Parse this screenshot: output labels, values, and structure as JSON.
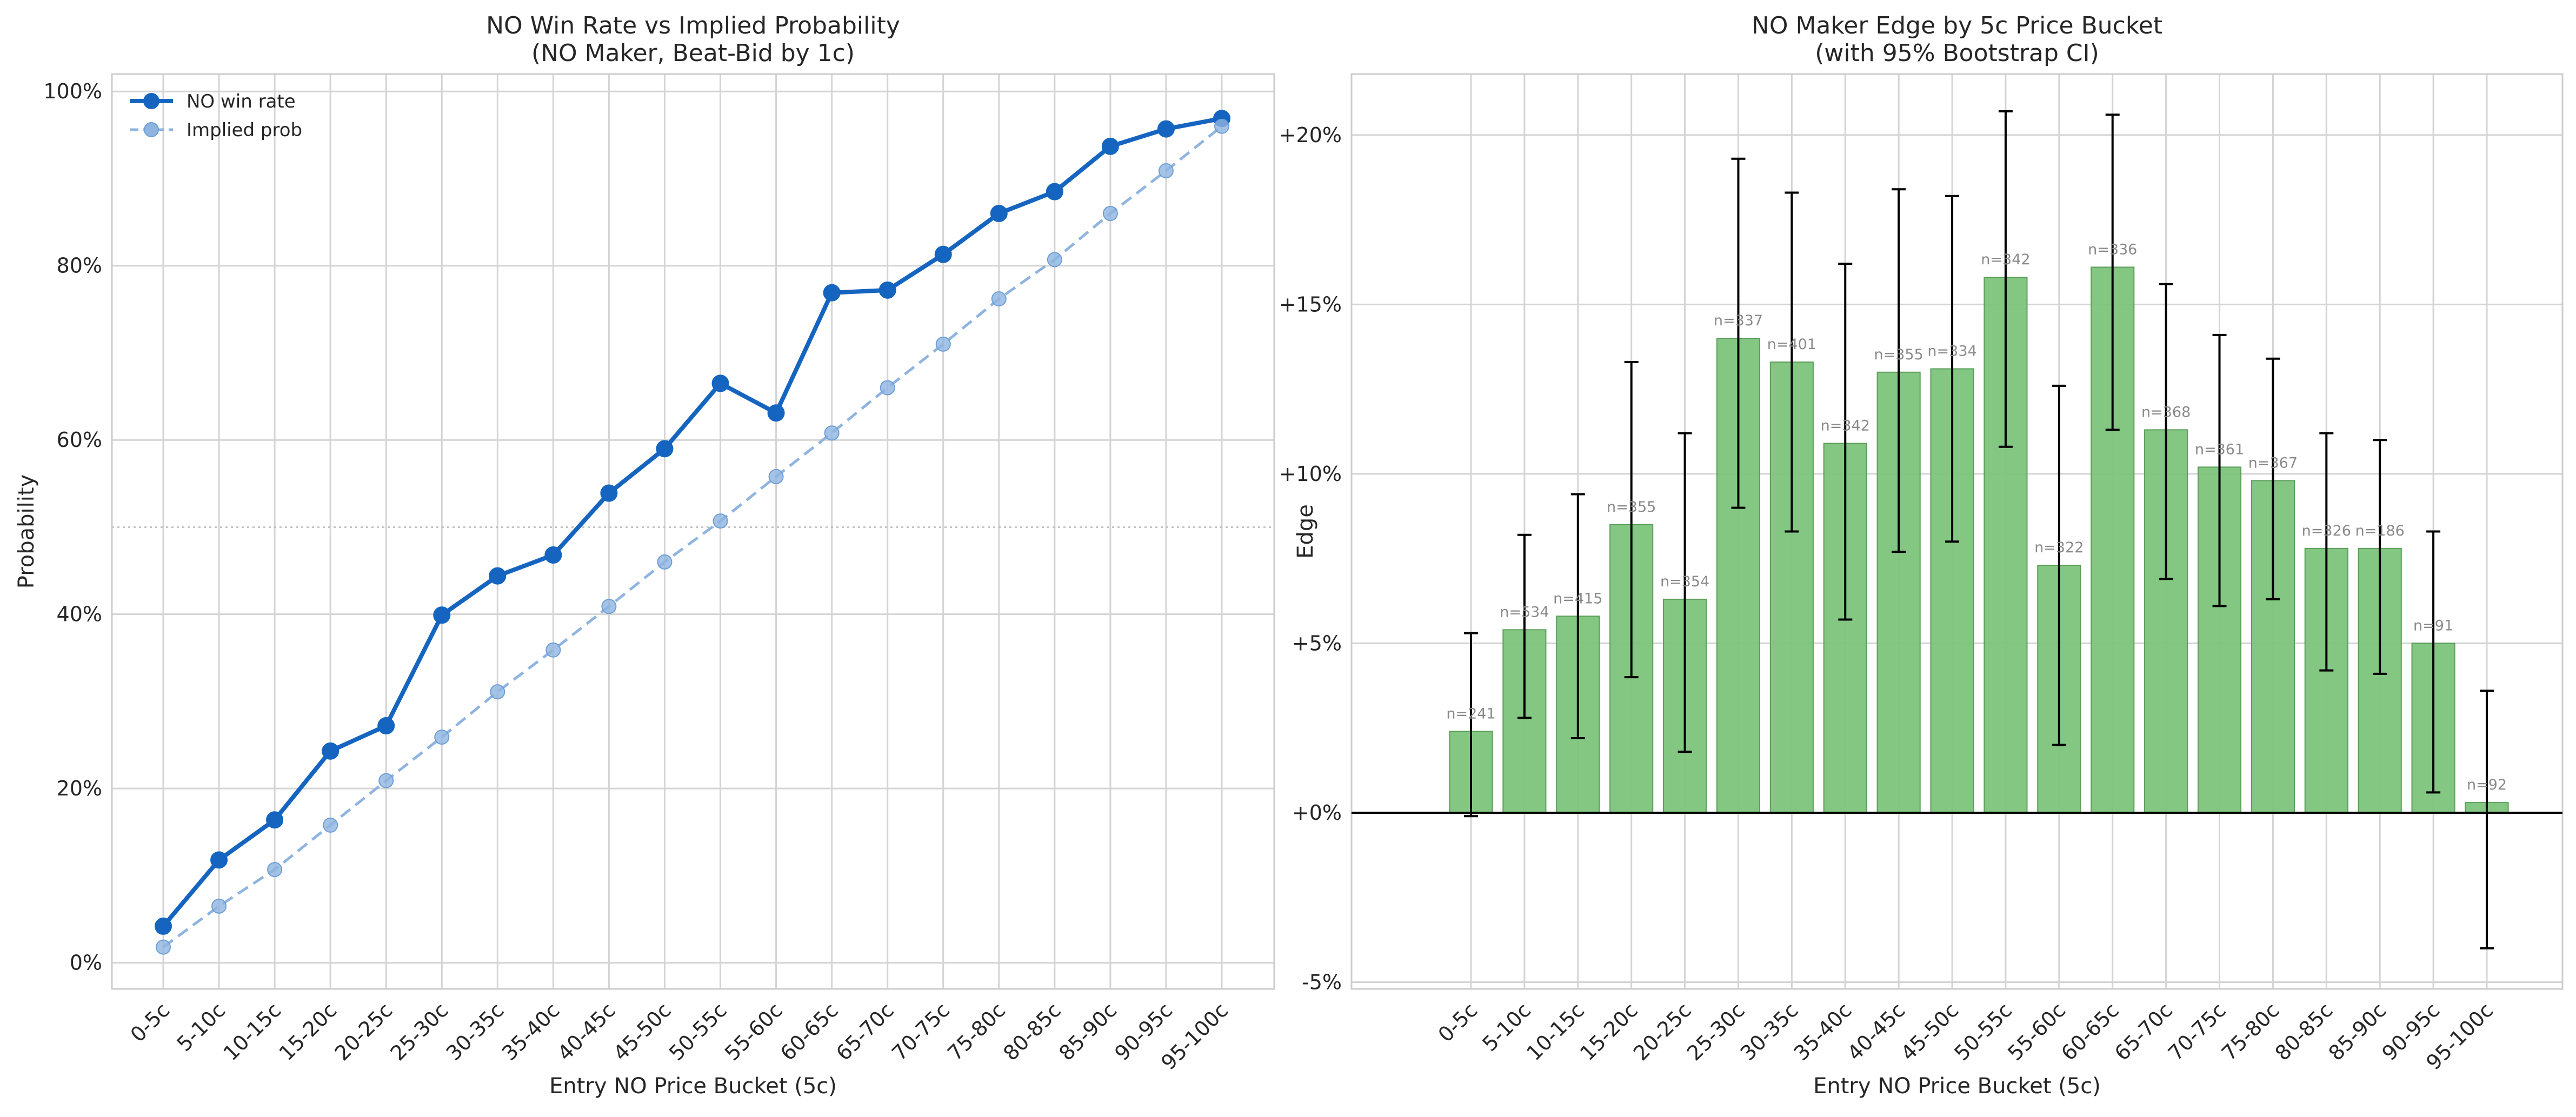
{
  "chart_data": [
    {
      "type": "line",
      "title": "NO Win Rate vs Implied Probability",
      "subtitle": "(NO Maker, Beat-Bid by 1c)",
      "xlabel": "Entry NO Price Bucket (5c)",
      "ylabel": "Probability",
      "categories": [
        "0-5c",
        "5-10c",
        "10-15c",
        "15-20c",
        "20-25c",
        "25-30c",
        "30-35c",
        "35-40c",
        "40-45c",
        "45-50c",
        "50-55c",
        "55-60c",
        "60-65c",
        "65-70c",
        "70-75c",
        "75-80c",
        "80-85c",
        "85-90c",
        "90-95c",
        "95-100c"
      ],
      "ylim": [
        -0.03,
        1.02
      ],
      "yticks": [
        0,
        0.2,
        0.4,
        0.6,
        0.8,
        1.0
      ],
      "ytick_labels": [
        "0%",
        "20%",
        "40%",
        "60%",
        "80%",
        "100%"
      ],
      "reference_line": 0.5,
      "grid": true,
      "legend_position": "top-left",
      "series": [
        {
          "name": "NO win rate",
          "color": "#1565c0",
          "style": "solid",
          "marker": "circle",
          "values": [
            0.042,
            0.118,
            0.164,
            0.243,
            0.272,
            0.399,
            0.444,
            0.468,
            0.539,
            0.59,
            0.665,
            0.631,
            0.769,
            0.772,
            0.813,
            0.86,
            0.885,
            0.937,
            0.957,
            0.969
          ]
        },
        {
          "name": "Implied prob",
          "color": "#8fb4e0",
          "style": "dashed",
          "marker": "circle",
          "values": [
            0.018,
            0.065,
            0.107,
            0.158,
            0.209,
            0.259,
            0.311,
            0.359,
            0.409,
            0.46,
            0.507,
            0.558,
            0.608,
            0.66,
            0.71,
            0.762,
            0.807,
            0.86,
            0.909,
            0.96
          ]
        }
      ]
    },
    {
      "type": "bar",
      "title": "NO Maker Edge by 5c Price Bucket",
      "subtitle": "(with 95% Bootstrap CI)",
      "xlabel": "Entry NO Price Bucket (5c)",
      "ylabel": "Edge",
      "categories": [
        "0-5c",
        "5-10c",
        "10-15c",
        "15-20c",
        "20-25c",
        "25-30c",
        "30-35c",
        "35-40c",
        "40-45c",
        "45-50c",
        "50-55c",
        "55-60c",
        "60-65c",
        "65-70c",
        "70-75c",
        "75-80c",
        "80-85c",
        "85-90c",
        "90-95c",
        "95-100c"
      ],
      "ylim": [
        -0.052,
        0.218
      ],
      "yticks": [
        -0.05,
        0,
        0.05,
        0.1,
        0.15,
        0.2
      ],
      "ytick_labels": [
        "-5%",
        "+0%",
        "+5%",
        "+10%",
        "+15%",
        "+20%"
      ],
      "grid": true,
      "bar_color": "#7cc47c",
      "bar_edge_color": "#5a9e5a",
      "values": [
        0.024,
        0.054,
        0.058,
        0.085,
        0.063,
        0.14,
        0.133,
        0.109,
        0.13,
        0.131,
        0.158,
        0.073,
        0.161,
        0.113,
        0.102,
        0.098,
        0.078,
        0.078,
        0.05,
        0.003
      ],
      "ci_low": [
        -0.001,
        0.028,
        0.022,
        0.04,
        0.018,
        0.09,
        0.083,
        0.057,
        0.077,
        0.08,
        0.108,
        0.02,
        0.113,
        0.069,
        0.061,
        0.063,
        0.042,
        0.041,
        0.006,
        -0.04
      ],
      "ci_high": [
        0.053,
        0.082,
        0.094,
        0.133,
        0.112,
        0.193,
        0.183,
        0.162,
        0.184,
        0.182,
        0.207,
        0.126,
        0.206,
        0.156,
        0.141,
        0.134,
        0.112,
        0.11,
        0.083,
        0.036
      ],
      "n_labels": [
        "n=241",
        "n=534",
        "n=415",
        "n=355",
        "n=354",
        "n=337",
        "n=401",
        "n=342",
        "n=355",
        "n=334",
        "n=342",
        "n=322",
        "n=336",
        "n=368",
        "n=361",
        "n=367",
        "n=326",
        "n=186",
        "n=91",
        "n=92"
      ]
    }
  ]
}
